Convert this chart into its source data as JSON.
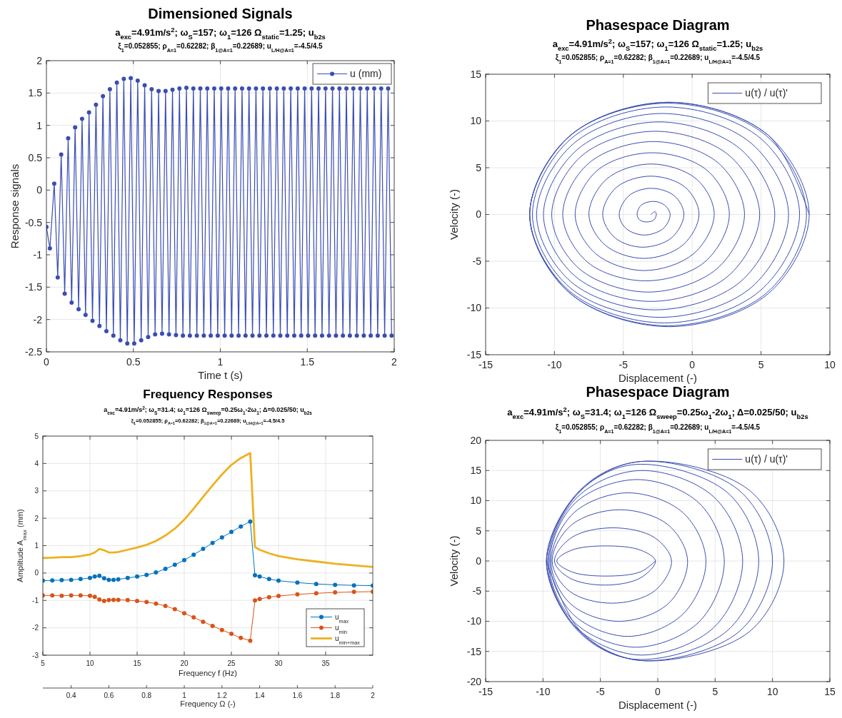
{
  "chart_data": [
    {
      "type": "line",
      "title": "Dimensioned Signals",
      "subtitle": "a$_{exc}$=4.91m/s$^{2}$; ω$_{S}$=157; ω$_{1}$=126 Ω$_{static}$=1.25; u$_{b2s}$",
      "annotations": [
        "ξ$_{1}$=0.052855; ρ$_{A=1}$=0.62282; β$_{1@A=1}$=0.22689; u$_{L/H@A=1}$=-4.5/4.5"
      ],
      "xlabel": "Time t (s)",
      "ylabel": "Response signals",
      "xlim": [
        0,
        2
      ],
      "xticks": [
        0,
        0.5,
        1,
        1.5,
        2
      ],
      "ylim": [
        -2.5,
        2
      ],
      "yticks": [
        -2.5,
        -2,
        -1.5,
        -1,
        -0.5,
        0,
        0.5,
        1,
        1.5,
        2
      ],
      "grid": true,
      "legend": "top right",
      "marker": "circle",
      "x": [
        0,
        0.02,
        0.045,
        0.065,
        0.085,
        0.105,
        0.125,
        0.145,
        0.165,
        0.185,
        0.205,
        0.225,
        0.245,
        0.265,
        0.285,
        0.305,
        0.325,
        0.345,
        0.365,
        0.385,
        0.405,
        0.425,
        0.445,
        0.465,
        0.485,
        0.505,
        0.525,
        0.545,
        0.565,
        0.585,
        0.605,
        0.625,
        0.645,
        0.665,
        0.685,
        0.705,
        0.725,
        0.745,
        0.765,
        0.785,
        0.805,
        0.825,
        0.845,
        0.865,
        0.885,
        0.905,
        0.925,
        0.945,
        0.965,
        0.985,
        1.005,
        1.025,
        1.045,
        1.065,
        1.085,
        1.105,
        1.125,
        1.145,
        1.165,
        1.185,
        1.205,
        1.225,
        1.245,
        1.265,
        1.285,
        1.305,
        1.325,
        1.345,
        1.365,
        1.385,
        1.405,
        1.425,
        1.445,
        1.465,
        1.485,
        1.505,
        1.525,
        1.545,
        1.565,
        1.585,
        1.605,
        1.625,
        1.645,
        1.665,
        1.685,
        1.705,
        1.725,
        1.745,
        1.765,
        1.785,
        1.805,
        1.825,
        1.845,
        1.865,
        1.885,
        1.905,
        1.925,
        1.945,
        1.965,
        1.985
      ],
      "series": [
        {
          "name": "u (mm)",
          "color": "#3a4db3",
          "values": [
            -0.57,
            -0.9,
            0.1,
            -1.35,
            0.55,
            -1.6,
            0.8,
            -1.74,
            0.97,
            -1.84,
            1.1,
            -1.93,
            1.2,
            -2.02,
            1.32,
            -2.1,
            1.45,
            -2.18,
            1.56,
            -2.25,
            1.66,
            -2.32,
            1.72,
            -2.37,
            1.73,
            -2.37,
            1.69,
            -2.32,
            1.62,
            -2.27,
            1.56,
            -2.23,
            1.53,
            -2.22,
            1.53,
            -2.23,
            1.55,
            -2.24,
            1.57,
            -2.25,
            1.58,
            -2.25,
            1.57,
            -2.25,
            1.57,
            -2.25,
            1.57,
            -2.25,
            1.57,
            -2.25,
            1.57,
            -2.25,
            1.57,
            -2.25,
            1.57,
            -2.25,
            1.57,
            -2.25,
            1.57,
            -2.25,
            1.57,
            -2.25,
            1.57,
            -2.25,
            1.57,
            -2.25,
            1.57,
            -2.25,
            1.57,
            -2.25,
            1.57,
            -2.25,
            1.57,
            -2.25,
            1.57,
            -2.25,
            1.57,
            -2.25,
            1.57,
            -2.25,
            1.57,
            -2.25,
            1.57,
            -2.25,
            1.57,
            -2.25,
            1.57,
            -2.25,
            1.57,
            -2.25,
            1.57,
            -2.25,
            1.57,
            -2.25,
            1.57,
            -2.25,
            1.57,
            -2.25,
            1.57,
            -2.25
          ]
        }
      ]
    },
    {
      "type": "line",
      "title": "Phasespace Diagram",
      "subtitle": "a$_{exc}$=4.91m/s$^{2}$; ω$_{S}$=157; ω$_{1}$=126 Ω$_{static}$=1.25; u$_{b2s}$",
      "annotations": [
        "ξ$_{1}$=0.052855; ρ$_{A=1}$=0.62282; β$_{1@A=1}$=0.22689; u$_{L/H@A=1}$=-4.5/4.5"
      ],
      "xlabel": "Displacement (-)",
      "ylabel": "Velocity (-)",
      "xlim": [
        -15,
        10
      ],
      "xticks": [
        -15,
        -10,
        -5,
        0,
        5,
        10
      ],
      "ylim": [
        -15,
        15
      ],
      "yticks": [
        -15,
        -10,
        -5,
        0,
        5,
        10,
        15
      ],
      "grid": true,
      "legend": "top right",
      "series": [
        {
          "name": "u(τ) / u(τ)'",
          "color": "#3a4db3",
          "x": [
            -3.0,
            -2.7,
            -2.6,
            -2.8,
            -3.3,
            -3.8,
            -4.0,
            -3.7,
            -2.8,
            -2.0,
            -1.6,
            -2.1,
            -3.5,
            -4.8,
            -5.3,
            -4.6,
            -3.0,
            -1.3,
            -0.6,
            -1.5,
            -3.6,
            -5.6,
            -6.5,
            -5.5,
            -3.0,
            -0.5,
            0.5,
            -0.7,
            -3.5,
            -6.3,
            -7.5,
            -6.2,
            -3.0,
            0.3,
            1.6,
            0.1,
            -3.5,
            -7.0,
            -8.5,
            -6.9,
            -2.9,
            1.1,
            2.7,
            0.9,
            -3.4,
            -7.6,
            -9.4,
            -7.5,
            -2.8,
            1.9,
            3.8,
            1.8,
            -3.2,
            -8.2,
            -10.2,
            -8.0,
            -2.7,
            2.7,
            4.9,
            2.6,
            -3.0,
            -8.5,
            -10.8,
            -8.3,
            -2.4,
            3.5,
            6.0,
            3.5,
            -2.7,
            -8.8,
            -11.3,
            -8.6,
            -2.2,
            4.3,
            7.0,
            4.3,
            -2.3,
            -8.9,
            -11.6,
            -8.8,
            -1.9,
            5.0,
            7.8,
            4.9,
            -2.0,
            -8.9,
            -11.8,
            -8.9,
            -1.8,
            5.4,
            8.3,
            5.4,
            -1.8,
            -8.9,
            -11.8,
            -8.8,
            -1.7,
            5.5,
            8.5,
            5.5,
            -1.7,
            -8.8,
            -11.8,
            -8.8,
            -1.7,
            5.5,
            8.5
          ],
          "values": [
            0.0,
            0.3,
            0.0,
            -0.6,
            -0.8,
            -0.6,
            0.0,
            1.0,
            1.4,
            1.0,
            0.0,
            -1.5,
            -2.2,
            -1.5,
            0.0,
            2.0,
            2.8,
            2.0,
            0.0,
            -2.5,
            -3.5,
            -2.5,
            0.0,
            2.9,
            4.1,
            2.9,
            0.0,
            -3.3,
            -4.7,
            -3.3,
            0.0,
            3.8,
            5.4,
            3.8,
            0.0,
            -4.2,
            -6.0,
            -4.2,
            0.0,
            4.7,
            6.6,
            4.7,
            0.0,
            -5.1,
            -7.1,
            -5.1,
            0.0,
            5.5,
            7.8,
            5.5,
            0.0,
            -5.8,
            -8.3,
            -5.8,
            0.0,
            6.3,
            8.9,
            6.3,
            0.0,
            -6.6,
            -9.3,
            -6.6,
            0.0,
            7.0,
            9.9,
            7.0,
            0.0,
            -7.2,
            -10.2,
            -7.2,
            0.0,
            7.6,
            10.8,
            7.6,
            0.0,
            -7.8,
            -11.0,
            -7.8,
            0.0,
            8.1,
            11.5,
            8.1,
            0.0,
            -8.2,
            -11.6,
            -8.2,
            0.0,
            8.4,
            11.9,
            8.4,
            0.0,
            -8.4,
            -11.9,
            -8.4,
            0.0,
            8.5,
            12.0,
            8.5,
            0.0,
            -8.5,
            -12.0,
            -8.5,
            0.0,
            8.5,
            12.0,
            8.5,
            0.0
          ]
        }
      ]
    },
    {
      "type": "line",
      "title": "Frequency Responses",
      "subtitle": "a$_{exc}$=4.91m/s$^{2}$; ω$_{S}$=31.4; ω$_{1}$=126 Ω$_{sweep}$=0.25ω$_{1}$-2ω$_{1}$; Δ=0.025/50; u$_{b2s}$",
      "annotations": [
        "ξ$_{1}$=0.052855; ρ$_{A=1}$=0.62282; β$_{1@A=1}$=0.22689; u$_{L/H@A=1}$=-4.5/4.5"
      ],
      "xlabel": "Frequency f (Hz)",
      "ylabel": "Amplitude A$_{max}$ (mm)",
      "x2label": "Frequency Ω (-)",
      "xlim": [
        5,
        40
      ],
      "xticks": [
        5,
        10,
        15,
        20,
        25,
        30,
        35
      ],
      "x2lim": [
        0.25,
        2
      ],
      "x2ticks": [
        0.4,
        0.6,
        0.8,
        1,
        1.2,
        1.4,
        1.6,
        1.8,
        2
      ],
      "ylim": [
        -3,
        5
      ],
      "yticks": [
        -3,
        -2,
        -1,
        0,
        1,
        2,
        3,
        4,
        5
      ],
      "grid": true,
      "legend": "bottom right",
      "x": [
        5,
        6,
        7,
        8,
        9,
        10,
        10.5,
        11,
        11.5,
        12,
        12.5,
        13,
        14,
        15,
        16,
        17,
        18,
        19,
        20,
        21,
        22,
        23,
        24,
        25,
        26,
        27,
        27.5,
        28,
        29,
        30,
        32,
        34,
        36,
        38,
        40
      ],
      "series": [
        {
          "name": "u$_{max}$",
          "color": "#0072bd",
          "marker": "circle",
          "values": [
            -0.28,
            -0.27,
            -0.26,
            -0.25,
            -0.22,
            -0.18,
            -0.13,
            -0.1,
            -0.19,
            -0.25,
            -0.25,
            -0.23,
            -0.18,
            -0.13,
            -0.07,
            0.02,
            0.15,
            0.3,
            0.47,
            0.67,
            0.88,
            1.1,
            1.3,
            1.5,
            1.7,
            1.88,
            -0.08,
            -0.13,
            -0.22,
            -0.28,
            -0.35,
            -0.4,
            -0.43,
            -0.45,
            -0.46
          ]
        },
        {
          "name": "u$_{min}$",
          "color": "#d95319",
          "marker": "circle",
          "values": [
            -0.82,
            -0.82,
            -0.83,
            -0.82,
            -0.82,
            -0.83,
            -0.87,
            -0.97,
            -1.02,
            -0.99,
            -0.98,
            -0.98,
            -0.99,
            -1.02,
            -1.06,
            -1.12,
            -1.2,
            -1.32,
            -1.47,
            -1.62,
            -1.78,
            -1.93,
            -2.08,
            -2.22,
            -2.37,
            -2.47,
            -1.0,
            -0.95,
            -0.88,
            -0.84,
            -0.78,
            -0.74,
            -0.71,
            -0.69,
            -0.68
          ]
        },
        {
          "name": "u$_{min+max}$",
          "color": "#edb120",
          "marker": "none",
          "values": [
            0.55,
            0.56,
            0.58,
            0.58,
            0.62,
            0.68,
            0.75,
            0.88,
            0.83,
            0.75,
            0.75,
            0.77,
            0.85,
            0.93,
            1.03,
            1.17,
            1.37,
            1.62,
            1.95,
            2.35,
            2.78,
            3.2,
            3.6,
            3.95,
            4.2,
            4.38,
            0.95,
            0.85,
            0.72,
            0.62,
            0.5,
            0.42,
            0.34,
            0.28,
            0.22
          ]
        }
      ]
    },
    {
      "type": "line",
      "title": "Phasespace Diagram",
      "subtitle": "a$_{exc}$=4.91m/s$^{2}$; ω$_{S}$=31.4; ω$_{1}$=126 Ω$_{sweep}$=0.25ω$_{1}$-2ω$_{1}$; Δ=0.025/50; u$_{b2s}$",
      "annotations": [
        "ξ$_{1}$=0.052855; ρ$_{A=1}$=0.62282; β$_{1@A=1}$=0.22689; u$_{L/H@A=1}$=-4.5/4.5"
      ],
      "xlabel": "Displacement (-)",
      "ylabel": "Velocity (-)",
      "xlim": [
        -15,
        15
      ],
      "xticks": [
        -15,
        -10,
        -5,
        0,
        5,
        10,
        15
      ],
      "ylim": [
        -20,
        20
      ],
      "yticks": [
        -20,
        -15,
        -10,
        -5,
        0,
        5,
        10,
        15,
        20
      ],
      "grid": true,
      "legend": "top right",
      "series": [
        {
          "name": "u(τ) / u(τ)'",
          "color": "#3a4db3",
          "x": [
            -0.2,
            -1.5,
            -4.5,
            -7.5,
            -8.8,
            -7.5,
            -4.5,
            -1.5,
            -0.2,
            -1.5,
            -4.6,
            -7.7,
            -9.0,
            -7.5,
            -3.9,
            -0.3,
            1.2,
            -0.3,
            -4.0,
            -7.7,
            -9.2,
            -7.5,
            -3.3,
            0.9,
            2.6,
            0.9,
            -3.4,
            -7.6,
            -9.3,
            -7.3,
            -2.6,
            2.2,
            4.2,
            2.2,
            -2.6,
            -7.4,
            -9.4,
            -7.2,
            -1.8,
            3.6,
            5.8,
            3.6,
            -1.9,
            -7.3,
            -9.5,
            -7.0,
            -1.5,
            4.9,
            7.4,
            4.9,
            -1.5,
            -7.1,
            -9.6,
            -6.9,
            -2.0,
            6.1,
            8.8,
            6.1,
            -2.0,
            -7.0,
            -9.7,
            -6.8,
            -1.5,
            7.1,
            10.0,
            7.1,
            -1.5,
            -6.8,
            -9.7,
            -6.7,
            -1.5,
            8.0,
            11.0,
            8.0,
            -1.5,
            -6.7,
            -9.7
          ],
          "values": [
            0.0,
            -1.8,
            -2.5,
            -1.8,
            0.0,
            1.8,
            2.5,
            1.8,
            0.0,
            -2.8,
            -4.0,
            -2.8,
            0.0,
            3.9,
            5.5,
            3.9,
            0.0,
            -5.0,
            -7.0,
            -5.0,
            0.0,
            6.0,
            8.5,
            6.0,
            0.0,
            -7.1,
            -10.0,
            -7.1,
            0.0,
            8.0,
            11.3,
            8.0,
            0.0,
            -8.8,
            -12.5,
            -8.8,
            0.0,
            9.6,
            13.5,
            9.6,
            0.0,
            -10.1,
            -14.3,
            -10.1,
            0.0,
            10.6,
            15.0,
            10.6,
            0.0,
            -11.0,
            -15.6,
            -11.0,
            0.0,
            11.3,
            16.0,
            11.3,
            0.0,
            -11.5,
            -16.3,
            -11.5,
            0.0,
            11.7,
            16.5,
            11.7,
            0.0,
            -11.7,
            -16.5,
            -11.7,
            0.0,
            11.7,
            16.5,
            11.7,
            0.0,
            -11.7,
            -16.5,
            -11.7,
            0.0
          ]
        }
      ]
    }
  ]
}
